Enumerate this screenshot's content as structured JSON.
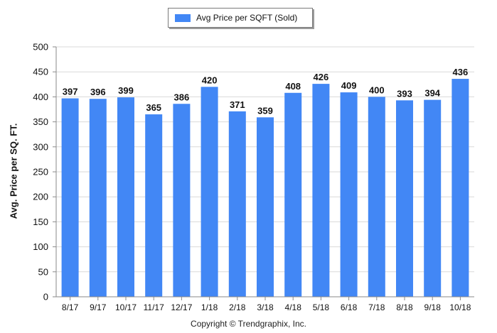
{
  "legend": {
    "label": "Avg Price per SQFT (Sold)"
  },
  "footer": {
    "copyright": "Copyright © Trendgraphix, Inc."
  },
  "colors": {
    "bar": "#4287f5",
    "grid": "#d9d9d9",
    "axis": "#8a8a8a"
  },
  "chart_data": {
    "type": "bar",
    "title": "",
    "xlabel": "",
    "ylabel": "Avg. Price per SQ. FT.",
    "ylim": [
      0,
      500
    ],
    "yticks": [
      0,
      50,
      100,
      150,
      200,
      250,
      300,
      350,
      400,
      450,
      500
    ],
    "grid": true,
    "legend_position": "top-center",
    "categories": [
      "8/17",
      "9/17",
      "10/17",
      "11/17",
      "12/17",
      "1/18",
      "2/18",
      "3/18",
      "4/18",
      "5/18",
      "6/18",
      "7/18",
      "8/18",
      "9/18",
      "10/18"
    ],
    "series": [
      {
        "name": "Avg Price per SQFT (Sold)",
        "values": [
          397,
          396,
          399,
          365,
          386,
          420,
          371,
          359,
          408,
          426,
          409,
          400,
          393,
          394,
          436
        ]
      }
    ]
  }
}
